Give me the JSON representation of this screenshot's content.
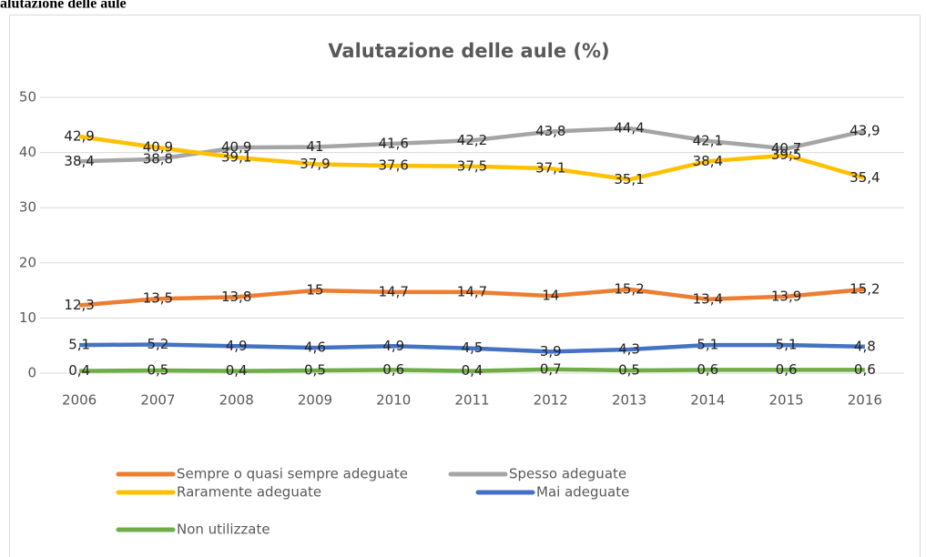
{
  "header": {
    "title": "alutazione delle aule"
  },
  "chart_data": {
    "type": "line",
    "title": "Valutazione delle aule (%)",
    "categories": [
      "2006",
      "2007",
      "2008",
      "2009",
      "2010",
      "2011",
      "2012",
      "2013",
      "2014",
      "2015",
      "2016"
    ],
    "ylim": [
      0,
      50
    ],
    "yticks": [
      0,
      10,
      20,
      30,
      40,
      50
    ],
    "grid": true,
    "series": [
      {
        "name": "Sempre o quasi sempre adeguate",
        "color": "#ED7D31",
        "values": [
          12.3,
          13.5,
          13.8,
          15,
          14.7,
          14.7,
          14,
          15.2,
          13.4,
          13.9,
          15.2
        ],
        "value_labels": [
          "12,3",
          "13,5",
          "13,8",
          "15",
          "14,7",
          "14,7",
          "14",
          "15,2",
          "13,4",
          "13,9",
          "15,2"
        ]
      },
      {
        "name": "Spesso adeguate",
        "color": "#A5A5A5",
        "values": [
          38.4,
          38.8,
          40.9,
          41,
          41.6,
          42.2,
          43.8,
          44.4,
          42.1,
          40.7,
          43.9
        ],
        "value_labels": [
          "38,4",
          "38,8",
          "40,9",
          "41",
          "41,6",
          "42,2",
          "43,8",
          "44,4",
          "42,1",
          "40,7",
          "43,9"
        ]
      },
      {
        "name": "Raramente adeguate",
        "color": "#FFC000",
        "values": [
          42.9,
          40.9,
          39.1,
          37.9,
          37.6,
          37.5,
          37.1,
          35.1,
          38.4,
          39.5,
          35.4
        ],
        "value_labels": [
          "42,9",
          "40,9",
          "39,1",
          "37,9",
          "37,6",
          "37,5",
          "37,1",
          "35,1",
          "38,4",
          "39,5",
          "35,4"
        ]
      },
      {
        "name": "Mai adeguate",
        "color": "#4472C4",
        "values": [
          5.1,
          5.2,
          4.9,
          4.6,
          4.9,
          4.5,
          3.9,
          4.3,
          5.1,
          5.1,
          4.8
        ],
        "value_labels": [
          "5,1",
          "5,2",
          "4,9",
          "4,6",
          "4,9",
          "4,5",
          "3,9",
          "4,3",
          "5,1",
          "5,1",
          "4,8"
        ]
      },
      {
        "name": "Non utilizzate",
        "color": "#70AD47",
        "values": [
          0.4,
          0.5,
          0.4,
          0.5,
          0.6,
          0.4,
          0.7,
          0.5,
          0.6,
          0.6,
          0.6
        ],
        "value_labels": [
          "0,4",
          "0,5",
          "0,4",
          "0,5",
          "0,6",
          "0,4",
          "0,7",
          "0,5",
          "0,6",
          "0,6",
          "0,6"
        ]
      }
    ]
  }
}
